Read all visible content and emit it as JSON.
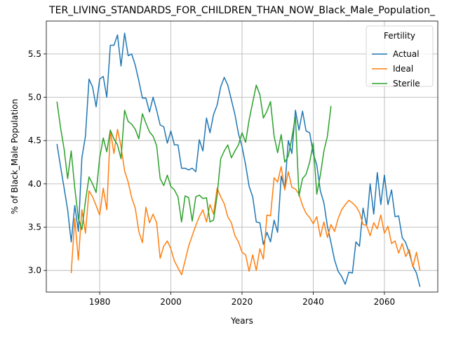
{
  "chart_data": {
    "type": "line",
    "title": "TER_LIVING_STANDARDS_FOR_CHILDREN_THAN_NOW_Black_Male_Population_",
    "xlabel": "Years",
    "ylabel": "% of Black_Male Population",
    "xlim": [
      1965,
      2075
    ],
    "ylim": [
      2.75,
      5.88
    ],
    "xticks": [
      1980,
      2000,
      2020,
      2040,
      2060
    ],
    "yticks": [
      3.0,
      3.5,
      4.0,
      4.5,
      5.0,
      5.5
    ],
    "grid": true,
    "legend": {
      "title": "Fertility",
      "placement": "top-right"
    },
    "series": [
      {
        "name": "Actual",
        "color": "#1f77b4",
        "points": [
          [
            1968,
            4.46
          ],
          [
            1969,
            4.2
          ],
          [
            1970,
            3.95
          ],
          [
            1971,
            3.7
          ],
          [
            1972,
            3.33
          ],
          [
            1973,
            3.75
          ],
          [
            1974,
            3.45
          ],
          [
            1975,
            4.3
          ],
          [
            1976,
            4.55
          ],
          [
            1977,
            5.21
          ],
          [
            1978,
            5.12
          ],
          [
            1979,
            4.89
          ],
          [
            1980,
            5.21
          ],
          [
            1981,
            5.24
          ],
          [
            1982,
            5.0
          ],
          [
            1983,
            5.6
          ],
          [
            1984,
            5.6
          ],
          [
            1985,
            5.72
          ],
          [
            1986,
            5.36
          ],
          [
            1987,
            5.74
          ],
          [
            1988,
            5.48
          ],
          [
            1989,
            5.5
          ],
          [
            1990,
            5.37
          ],
          [
            1991,
            5.19
          ],
          [
            1992,
            4.99
          ],
          [
            1993,
            4.99
          ],
          [
            1994,
            4.83
          ],
          [
            1995,
            5.0
          ],
          [
            1996,
            4.85
          ],
          [
            1997,
            4.68
          ],
          [
            1998,
            4.66
          ],
          [
            1999,
            4.47
          ],
          [
            2000,
            4.61
          ],
          [
            2001,
            4.45
          ],
          [
            2002,
            4.45
          ],
          [
            2003,
            4.18
          ],
          [
            2004,
            4.18
          ],
          [
            2005,
            4.16
          ],
          [
            2006,
            4.18
          ],
          [
            2007,
            4.14
          ],
          [
            2008,
            4.51
          ],
          [
            2009,
            4.38
          ],
          [
            2010,
            4.76
          ],
          [
            2011,
            4.59
          ],
          [
            2012,
            4.8
          ],
          [
            2013,
            4.91
          ],
          [
            2014,
            5.12
          ],
          [
            2015,
            5.23
          ],
          [
            2016,
            5.14
          ],
          [
            2017,
            4.97
          ],
          [
            2018,
            4.8
          ],
          [
            2019,
            4.58
          ],
          [
            2020,
            4.43
          ],
          [
            2021,
            4.22
          ],
          [
            2022,
            3.97
          ],
          [
            2023,
            3.85
          ],
          [
            2024,
            3.56
          ],
          [
            2025,
            3.55
          ],
          [
            2026,
            3.3
          ],
          [
            2027,
            3.44
          ],
          [
            2028,
            3.33
          ],
          [
            2029,
            3.58
          ],
          [
            2030,
            3.44
          ],
          [
            2031,
            4.09
          ],
          [
            2032,
            3.94
          ],
          [
            2033,
            4.5
          ],
          [
            2034,
            4.35
          ],
          [
            2035,
            4.85
          ],
          [
            2036,
            4.62
          ],
          [
            2037,
            4.84
          ],
          [
            2038,
            4.61
          ],
          [
            2039,
            4.59
          ],
          [
            2040,
            4.35
          ],
          [
            2041,
            4.22
          ],
          [
            2042,
            3.92
          ],
          [
            2043,
            3.78
          ],
          [
            2044,
            3.51
          ],
          [
            2045,
            3.32
          ],
          [
            2046,
            3.12
          ],
          [
            2047,
            2.99
          ],
          [
            2048,
            2.93
          ],
          [
            2049,
            2.84
          ],
          [
            2050,
            2.98
          ],
          [
            2051,
            2.97
          ],
          [
            2052,
            3.33
          ],
          [
            2053,
            3.28
          ],
          [
            2054,
            3.72
          ],
          [
            2055,
            3.52
          ],
          [
            2056,
            4.0
          ],
          [
            2057,
            3.65
          ],
          [
            2058,
            4.13
          ],
          [
            2059,
            3.76
          ],
          [
            2060,
            4.1
          ],
          [
            2061,
            3.76
          ],
          [
            2062,
            3.93
          ],
          [
            2063,
            3.62
          ],
          [
            2064,
            3.63
          ],
          [
            2065,
            3.38
          ],
          [
            2066,
            3.32
          ],
          [
            2067,
            3.2
          ],
          [
            2068,
            3.05
          ],
          [
            2069,
            2.97
          ],
          [
            2070,
            2.81
          ]
        ]
      },
      {
        "name": "Ideal",
        "color": "#ff7f0e",
        "points": [
          [
            1972,
            2.97
          ],
          [
            1973,
            3.6
          ],
          [
            1974,
            3.12
          ],
          [
            1975,
            3.7
          ],
          [
            1976,
            3.43
          ],
          [
            1977,
            3.92
          ],
          [
            1978,
            3.85
          ],
          [
            1979,
            3.75
          ],
          [
            1980,
            3.64
          ],
          [
            1981,
            3.95
          ],
          [
            1982,
            3.7
          ],
          [
            1983,
            4.62
          ],
          [
            1984,
            4.35
          ],
          [
            1985,
            4.63
          ],
          [
            1986,
            4.43
          ],
          [
            1987,
            4.15
          ],
          [
            1988,
            4.02
          ],
          [
            1989,
            3.84
          ],
          [
            1990,
            3.72
          ],
          [
            1991,
            3.45
          ],
          [
            1992,
            3.32
          ],
          [
            1993,
            3.73
          ],
          [
            1994,
            3.55
          ],
          [
            1995,
            3.65
          ],
          [
            1996,
            3.55
          ],
          [
            1997,
            3.14
          ],
          [
            1998,
            3.28
          ],
          [
            1999,
            3.34
          ],
          [
            2000,
            3.25
          ],
          [
            2001,
            3.11
          ],
          [
            2002,
            3.03
          ],
          [
            2003,
            2.95
          ],
          [
            2004,
            3.11
          ],
          [
            2005,
            3.28
          ],
          [
            2006,
            3.4
          ],
          [
            2007,
            3.52
          ],
          [
            2008,
            3.62
          ],
          [
            2009,
            3.7
          ],
          [
            2010,
            3.56
          ],
          [
            2011,
            3.76
          ],
          [
            2012,
            3.65
          ],
          [
            2013,
            3.95
          ],
          [
            2014,
            3.85
          ],
          [
            2015,
            3.77
          ],
          [
            2016,
            3.62
          ],
          [
            2017,
            3.55
          ],
          [
            2018,
            3.4
          ],
          [
            2019,
            3.33
          ],
          [
            2020,
            3.21
          ],
          [
            2021,
            3.18
          ],
          [
            2022,
            2.99
          ],
          [
            2023,
            3.18
          ],
          [
            2024,
            3.0
          ],
          [
            2025,
            3.25
          ],
          [
            2026,
            3.13
          ],
          [
            2027,
            3.64
          ],
          [
            2028,
            3.63
          ],
          [
            2029,
            4.07
          ],
          [
            2030,
            4.02
          ],
          [
            2031,
            4.2
          ],
          [
            2032,
            3.93
          ],
          [
            2033,
            4.14
          ],
          [
            2034,
            3.96
          ],
          [
            2035,
            3.94
          ],
          [
            2036,
            3.88
          ],
          [
            2037,
            3.75
          ],
          [
            2038,
            3.66
          ],
          [
            2039,
            3.61
          ],
          [
            2040,
            3.54
          ],
          [
            2041,
            3.62
          ],
          [
            2042,
            3.39
          ],
          [
            2043,
            3.56
          ],
          [
            2044,
            3.38
          ],
          [
            2045,
            3.53
          ],
          [
            2046,
            3.45
          ],
          [
            2047,
            3.6
          ],
          [
            2048,
            3.7
          ],
          [
            2049,
            3.76
          ],
          [
            2050,
            3.81
          ],
          [
            2051,
            3.78
          ],
          [
            2052,
            3.74
          ],
          [
            2053,
            3.67
          ],
          [
            2054,
            3.53
          ],
          [
            2055,
            3.52
          ],
          [
            2056,
            3.4
          ],
          [
            2057,
            3.55
          ],
          [
            2058,
            3.48
          ],
          [
            2059,
            3.64
          ],
          [
            2060,
            3.43
          ],
          [
            2061,
            3.51
          ],
          [
            2062,
            3.31
          ],
          [
            2063,
            3.34
          ],
          [
            2064,
            3.2
          ],
          [
            2065,
            3.31
          ],
          [
            2066,
            3.16
          ],
          [
            2067,
            3.24
          ],
          [
            2068,
            3.04
          ],
          [
            2069,
            3.21
          ],
          [
            2070,
            3.0
          ]
        ]
      },
      {
        "name": "Sterile",
        "color": "#2ca02c",
        "points": [
          [
            1968,
            4.95
          ],
          [
            1969,
            4.65
          ],
          [
            1970,
            4.4
          ],
          [
            1971,
            4.06
          ],
          [
            1972,
            4.38
          ],
          [
            1973,
            3.95
          ],
          [
            1974,
            3.6
          ],
          [
            1975,
            3.47
          ],
          [
            1976,
            3.8
          ],
          [
            1977,
            4.08
          ],
          [
            1978,
            4.0
          ],
          [
            1979,
            3.9
          ],
          [
            1980,
            4.3
          ],
          [
            1981,
            4.53
          ],
          [
            1982,
            4.37
          ],
          [
            1983,
            4.62
          ],
          [
            1984,
            4.52
          ],
          [
            1985,
            4.45
          ],
          [
            1986,
            4.29
          ],
          [
            1987,
            4.85
          ],
          [
            1988,
            4.72
          ],
          [
            1989,
            4.69
          ],
          [
            1990,
            4.63
          ],
          [
            1991,
            4.52
          ],
          [
            1992,
            4.81
          ],
          [
            1993,
            4.7
          ],
          [
            1994,
            4.6
          ],
          [
            1995,
            4.55
          ],
          [
            1996,
            4.44
          ],
          [
            1997,
            4.06
          ],
          [
            1998,
            3.98
          ],
          [
            1999,
            4.1
          ],
          [
            2000,
            3.97
          ],
          [
            2001,
            3.93
          ],
          [
            2002,
            3.85
          ],
          [
            2003,
            3.56
          ],
          [
            2004,
            3.86
          ],
          [
            2005,
            3.84
          ],
          [
            2006,
            3.57
          ],
          [
            2007,
            3.85
          ],
          [
            2008,
            3.87
          ],
          [
            2009,
            3.83
          ],
          [
            2010,
            3.84
          ],
          [
            2011,
            3.56
          ],
          [
            2012,
            3.58
          ],
          [
            2013,
            3.87
          ],
          [
            2014,
            4.29
          ],
          [
            2015,
            4.38
          ],
          [
            2016,
            4.45
          ],
          [
            2017,
            4.3
          ],
          [
            2018,
            4.38
          ],
          [
            2019,
            4.45
          ],
          [
            2020,
            4.59
          ],
          [
            2021,
            4.48
          ],
          [
            2022,
            4.74
          ],
          [
            2023,
            4.94
          ],
          [
            2024,
            5.14
          ],
          [
            2025,
            5.03
          ],
          [
            2026,
            4.76
          ],
          [
            2027,
            4.84
          ],
          [
            2028,
            4.95
          ],
          [
            2029,
            4.55
          ],
          [
            2030,
            4.36
          ],
          [
            2031,
            4.57
          ],
          [
            2032,
            4.25
          ],
          [
            2033,
            4.32
          ],
          [
            2034,
            4.53
          ],
          [
            2035,
            4.78
          ],
          [
            2036,
            3.86
          ],
          [
            2037,
            4.06
          ],
          [
            2038,
            4.11
          ],
          [
            2039,
            4.25
          ],
          [
            2040,
            4.47
          ],
          [
            2041,
            3.88
          ],
          [
            2042,
            4.1
          ],
          [
            2043,
            4.38
          ],
          [
            2044,
            4.55
          ],
          [
            2045,
            4.9
          ]
        ]
      }
    ]
  }
}
